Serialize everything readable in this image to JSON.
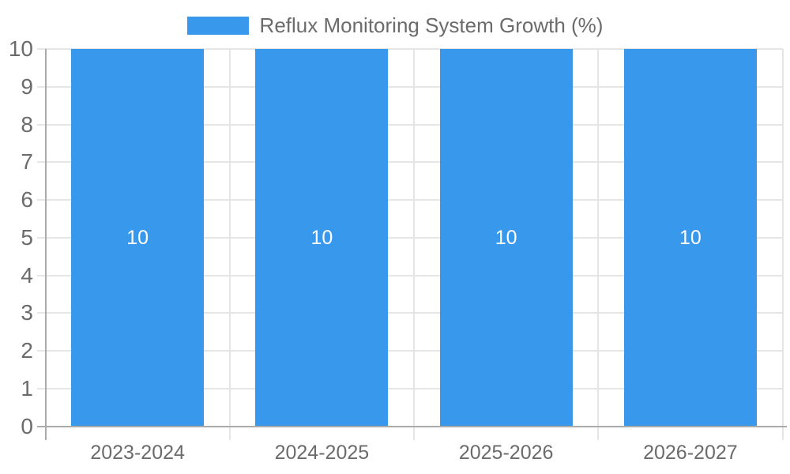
{
  "legend": {
    "label": "Reflux Monitoring System Growth (%)"
  },
  "colors": {
    "bar": "#3898EC",
    "grid": "#E5E5E5",
    "axis": "#ABABAB",
    "text": "#6B6B6B",
    "value_label": "#FFFFFF"
  },
  "chart_data": {
    "type": "bar",
    "title": "Reflux Monitoring System Growth (%)",
    "categories": [
      "2023-2024",
      "2024-2025",
      "2025-2026",
      "2026-2027"
    ],
    "values": [
      10,
      10,
      10,
      10
    ],
    "value_labels": [
      "10",
      "10",
      "10",
      "10"
    ],
    "xlabel": "",
    "ylabel": "",
    "ylim": [
      0,
      10
    ],
    "yticks": [
      0,
      1,
      2,
      3,
      4,
      5,
      6,
      7,
      8,
      9,
      10
    ],
    "grid": true,
    "legend_position": "top",
    "bar_color": "#3898EC"
  }
}
